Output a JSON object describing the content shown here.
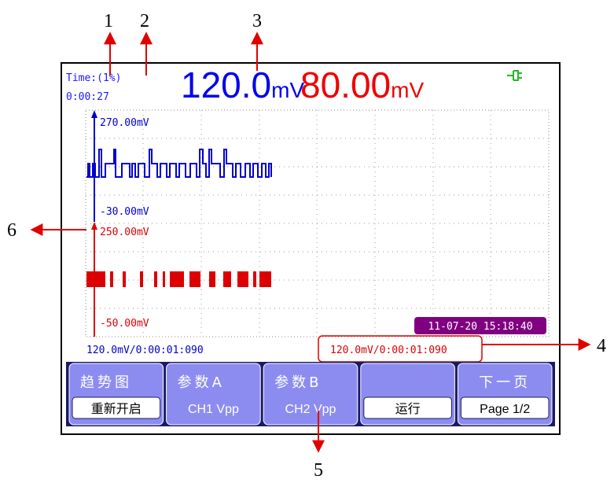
{
  "callouts": [
    "1",
    "2",
    "3",
    "4",
    "5",
    "6"
  ],
  "screen": {
    "time_label": "Time:(1%)",
    "time_value": "0:00:27",
    "ch1_value": "120.0",
    "ch1_unit": "mV",
    "ch2_value": "80.00",
    "ch2_unit": "mV",
    "ch1_top": "270.00mV",
    "ch1_bottom": "-30.00mV",
    "ch2_top": "250.00mV",
    "ch2_bottom": "-50.00mV",
    "datetime": "11-07-20 15:18:40",
    "readout1": "120.0mV/0:00:01:090",
    "readout2": "120.0mV/0:00:01:090"
  },
  "menu": [
    {
      "top": "趋势图",
      "bottom": "重新开启"
    },
    {
      "top": "参数A",
      "bottom": "CH1 Vpp"
    },
    {
      "top": "参数B",
      "bottom": "CH2 Vpp"
    },
    {
      "bottom": "运行"
    },
    {
      "top": "下一页",
      "bottom": "Page 1/2"
    }
  ]
}
